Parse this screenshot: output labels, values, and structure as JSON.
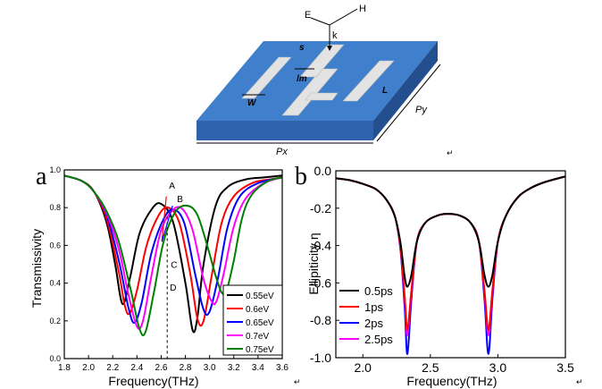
{
  "structure": {
    "labels": {
      "E": "E",
      "H": "H",
      "k": "k",
      "s": "s",
      "lm": "lm",
      "W": "W",
      "L": "L",
      "Py": "Py",
      "Px": "Px"
    },
    "colors": {
      "substrate_top": "#3f7fcc",
      "substrate_front": "#2f63ad",
      "substrate_side": "#244f8f",
      "metal": "#e3e3e3"
    }
  },
  "chart_data": [
    {
      "panel": "a",
      "type": "line",
      "xlabel": "Frequency(THz)",
      "ylabel": "Transmissivity",
      "xlim": [
        1.8,
        3.6
      ],
      "ylim": [
        0.0,
        1.0
      ],
      "xticks": [
        "1.8",
        "2.0",
        "2.2",
        "2.4",
        "2.6",
        "2.8",
        "3.0",
        "3.2",
        "3.4",
        "3.6"
      ],
      "yticks": [
        "0.0",
        "0.2",
        "0.4",
        "0.6",
        "0.8",
        "1.0"
      ],
      "legend_position": "bottom-right",
      "annotations": [
        "A",
        "B",
        "C",
        "D"
      ],
      "marker_line_x": 2.65,
      "series": [
        {
          "name": "0.55eV",
          "color": "#000000",
          "x": [
            1.8,
            1.95,
            2.05,
            2.15,
            2.22,
            2.28,
            2.34,
            2.42,
            2.52,
            2.6,
            2.7,
            2.8,
            2.86,
            2.9,
            2.95,
            3.05,
            3.15,
            3.3,
            3.45,
            3.6
          ],
          "y": [
            0.97,
            0.94,
            0.88,
            0.72,
            0.5,
            0.29,
            0.42,
            0.66,
            0.79,
            0.82,
            0.72,
            0.4,
            0.15,
            0.22,
            0.5,
            0.81,
            0.91,
            0.95,
            0.96,
            0.97
          ]
        },
        {
          "name": "0.6eV",
          "color": "#ff0000",
          "x": [
            1.8,
            1.95,
            2.05,
            2.15,
            2.25,
            2.3,
            2.34,
            2.4,
            2.48,
            2.58,
            2.66,
            2.75,
            2.84,
            2.9,
            2.95,
            3.02,
            3.1,
            3.2,
            3.35,
            3.5,
            3.6
          ],
          "y": [
            0.97,
            0.94,
            0.88,
            0.74,
            0.46,
            0.28,
            0.24,
            0.36,
            0.6,
            0.76,
            0.8,
            0.72,
            0.45,
            0.21,
            0.2,
            0.45,
            0.72,
            0.86,
            0.93,
            0.95,
            0.96
          ]
        },
        {
          "name": "0.65eV",
          "color": "#0000ff",
          "x": [
            1.8,
            1.95,
            2.05,
            2.15,
            2.25,
            2.33,
            2.38,
            2.44,
            2.52,
            2.62,
            2.7,
            2.79,
            2.88,
            2.95,
            3.0,
            3.07,
            3.15,
            3.25,
            3.4,
            3.6
          ],
          "y": [
            0.97,
            0.94,
            0.88,
            0.76,
            0.52,
            0.27,
            0.19,
            0.3,
            0.56,
            0.74,
            0.79,
            0.72,
            0.45,
            0.26,
            0.25,
            0.43,
            0.7,
            0.86,
            0.93,
            0.96
          ]
        },
        {
          "name": "0.7eV",
          "color": "#ff00ff",
          "x": [
            1.8,
            1.95,
            2.05,
            2.15,
            2.25,
            2.33,
            2.4,
            2.45,
            2.52,
            2.6,
            2.7,
            2.78,
            2.86,
            2.95,
            3.02,
            3.06,
            3.12,
            3.2,
            3.3,
            3.45,
            3.6
          ],
          "y": [
            0.97,
            0.94,
            0.88,
            0.77,
            0.58,
            0.34,
            0.17,
            0.2,
            0.44,
            0.68,
            0.79,
            0.79,
            0.68,
            0.42,
            0.3,
            0.31,
            0.46,
            0.7,
            0.85,
            0.93,
            0.96
          ]
        },
        {
          "name": "0.75eV",
          "color": "#008000",
          "x": [
            1.8,
            1.95,
            2.05,
            2.15,
            2.25,
            2.35,
            2.42,
            2.47,
            2.54,
            2.62,
            2.72,
            2.82,
            2.9,
            2.98,
            3.05,
            3.1,
            3.14,
            3.2,
            3.27,
            3.35,
            3.48,
            3.6
          ],
          "y": [
            0.97,
            0.94,
            0.88,
            0.78,
            0.62,
            0.36,
            0.16,
            0.14,
            0.35,
            0.62,
            0.78,
            0.81,
            0.76,
            0.6,
            0.44,
            0.35,
            0.36,
            0.52,
            0.75,
            0.87,
            0.94,
            0.96
          ]
        }
      ]
    },
    {
      "panel": "b",
      "type": "line",
      "xlabel": "Frequency(THz)",
      "ylabel": "Ellipiticity η",
      "xlim": [
        1.8,
        3.5
      ],
      "ylim": [
        -1.0,
        0.0
      ],
      "xticks": [
        "2.0",
        "2.5",
        "3.0",
        "3.5"
      ],
      "yticks": [
        "0.0",
        "-0.2",
        "-0.4",
        "-0.6",
        "-0.8",
        "-1.0"
      ],
      "legend_position": "bottom-left",
      "series": [
        {
          "name": "0.5ps",
          "color": "#000000",
          "depth": -0.62
        },
        {
          "name": "1ps",
          "color": "#ff0000",
          "depth": -0.85
        },
        {
          "name": "2ps",
          "color": "#0000ff",
          "depth": -0.98
        },
        {
          "name": "2.5ps",
          "color": "#ff00ff",
          "depth": -0.88
        }
      ],
      "dip_centers": [
        2.33,
        2.93
      ],
      "baseline": [
        [
          1.8,
          -0.04
        ],
        [
          1.9,
          -0.05
        ],
        [
          2.0,
          -0.07
        ],
        [
          2.1,
          -0.1
        ],
        [
          2.18,
          -0.16
        ],
        [
          2.24,
          -0.25
        ],
        [
          2.28,
          -0.38
        ],
        [
          2.31,
          -0.52
        ],
        [
          2.36,
          -0.52
        ],
        [
          2.4,
          -0.38
        ],
        [
          2.46,
          -0.28
        ],
        [
          2.55,
          -0.24
        ],
        [
          2.63,
          -0.23
        ],
        [
          2.72,
          -0.24
        ],
        [
          2.8,
          -0.28
        ],
        [
          2.86,
          -0.38
        ],
        [
          2.9,
          -0.52
        ],
        [
          2.96,
          -0.52
        ],
        [
          3.0,
          -0.38
        ],
        [
          3.06,
          -0.24
        ],
        [
          3.15,
          -0.14
        ],
        [
          3.25,
          -0.09
        ],
        [
          3.35,
          -0.06
        ],
        [
          3.5,
          -0.03
        ]
      ]
    }
  ],
  "trailing_marks": [
    "↵",
    "↵",
    "↵"
  ]
}
